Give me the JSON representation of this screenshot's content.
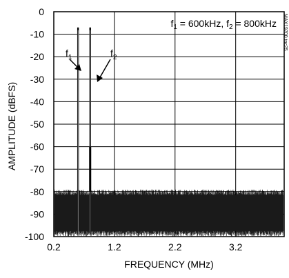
{
  "chart_data": {
    "type": "line",
    "title": "",
    "xlabel": "FREQUENCY (MHz)",
    "ylabel": "AMPLITUDE (dBFS)",
    "xlim": [
      0.2,
      4.0
    ],
    "ylim": [
      -100,
      0
    ],
    "x_ticks": [
      0.2,
      1.2,
      2.2,
      3.2
    ],
    "x_tick_labels": [
      "0.2",
      "1.2",
      "2.2",
      "3.2"
    ],
    "y_ticks": [
      0,
      -10,
      -20,
      -30,
      -40,
      -50,
      -60,
      -70,
      -80,
      -90,
      -100
    ],
    "y_tick_labels": [
      "0",
      "-10",
      "-20",
      "-30",
      "-40",
      "-50",
      "-60",
      "-70",
      "-80",
      "-90",
      "-100"
    ],
    "grid": true,
    "tones": [
      {
        "label": "f",
        "subscript": "1",
        "frequency_mhz": 0.6,
        "amplitude_dbfs": -7
      },
      {
        "label": "f",
        "subscript": "2",
        "frequency_mhz": 0.8,
        "amplitude_dbfs": -7
      }
    ],
    "spur_mhz": 0.8,
    "spur_dbfs": -60,
    "noise_floor": {
      "top_dbfs": -80,
      "bottom_dbfs": -99
    },
    "annotation": {
      "f1_label": "f",
      "f1_sub": "1",
      "mid1": " = 600kHz, ",
      "f2_label": "f",
      "f2_sub": "2",
      "mid2": " = 800kHz"
    },
    "watermark": "MAX19700 toc25"
  }
}
